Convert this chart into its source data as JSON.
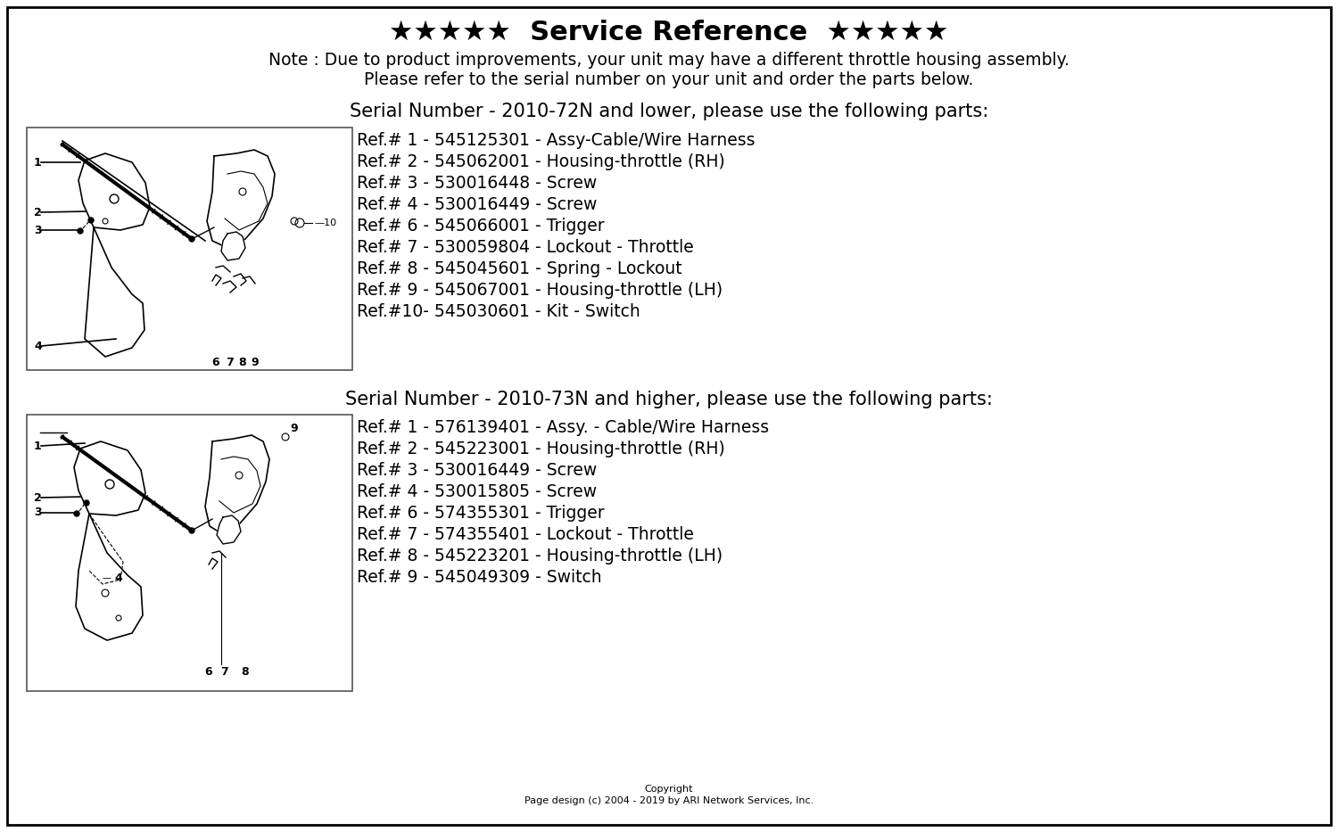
{
  "title": "★★★★★  Service Reference  ★★★★★",
  "note_line1": "Note : Due to product improvements, your unit may have a different throttle housing assembly.",
  "note_line2": "Please refer to the serial number on your unit and order the parts below.",
  "section1_header": "Serial Number - 2010-72N and lower, please use the following parts:",
  "section1_parts": [
    "Ref.# 1 - 545125301 - Assy-Cable/Wire Harness",
    "Ref.# 2 - 545062001 - Housing-throttle (RH)",
    "Ref.# 3 - 530016448 - Screw",
    "Ref.# 4 - 530016449 - Screw",
    "Ref.# 6 - 545066001 - Trigger",
    "Ref.# 7 - 530059804 - Lockout - Throttle",
    "Ref.# 8 - 545045601 - Spring - Lockout",
    "Ref.# 9 - 545067001 - Housing-throttle (LH)",
    "Ref.#10- 545030601 - Kit - Switch"
  ],
  "section2_header": "Serial Number - 2010-73N and higher, please use the following parts:",
  "section2_parts": [
    "Ref.# 1 - 576139401 - Assy. - Cable/Wire Harness",
    "Ref.# 2 - 545223001 - Housing-throttle (RH)",
    "Ref.# 3 - 530016449 - Screw",
    "Ref.# 4 - 530015805 - Screw",
    "Ref.# 6 - 574355301 - Trigger",
    "Ref.# 7 - 574355401 - Lockout - Throttle",
    "Ref.# 8 - 545223201 - Housing-throttle (LH)",
    "Ref.# 9 - 545049309 - Switch"
  ],
  "copyright_line1": "Copyright",
  "copyright_line2": "Page design (c) 2004 - 2019 by ARI Network Services, Inc.",
  "bg_color": "#ffffff",
  "border_color": "#000000",
  "text_color": "#000000",
  "diagram_border_color": "#555555",
  "title_fontsize": 22,
  "note_fontsize": 13.5,
  "header_fontsize": 15,
  "parts_fontsize": 13.5,
  "copyright_fontsize": 8
}
